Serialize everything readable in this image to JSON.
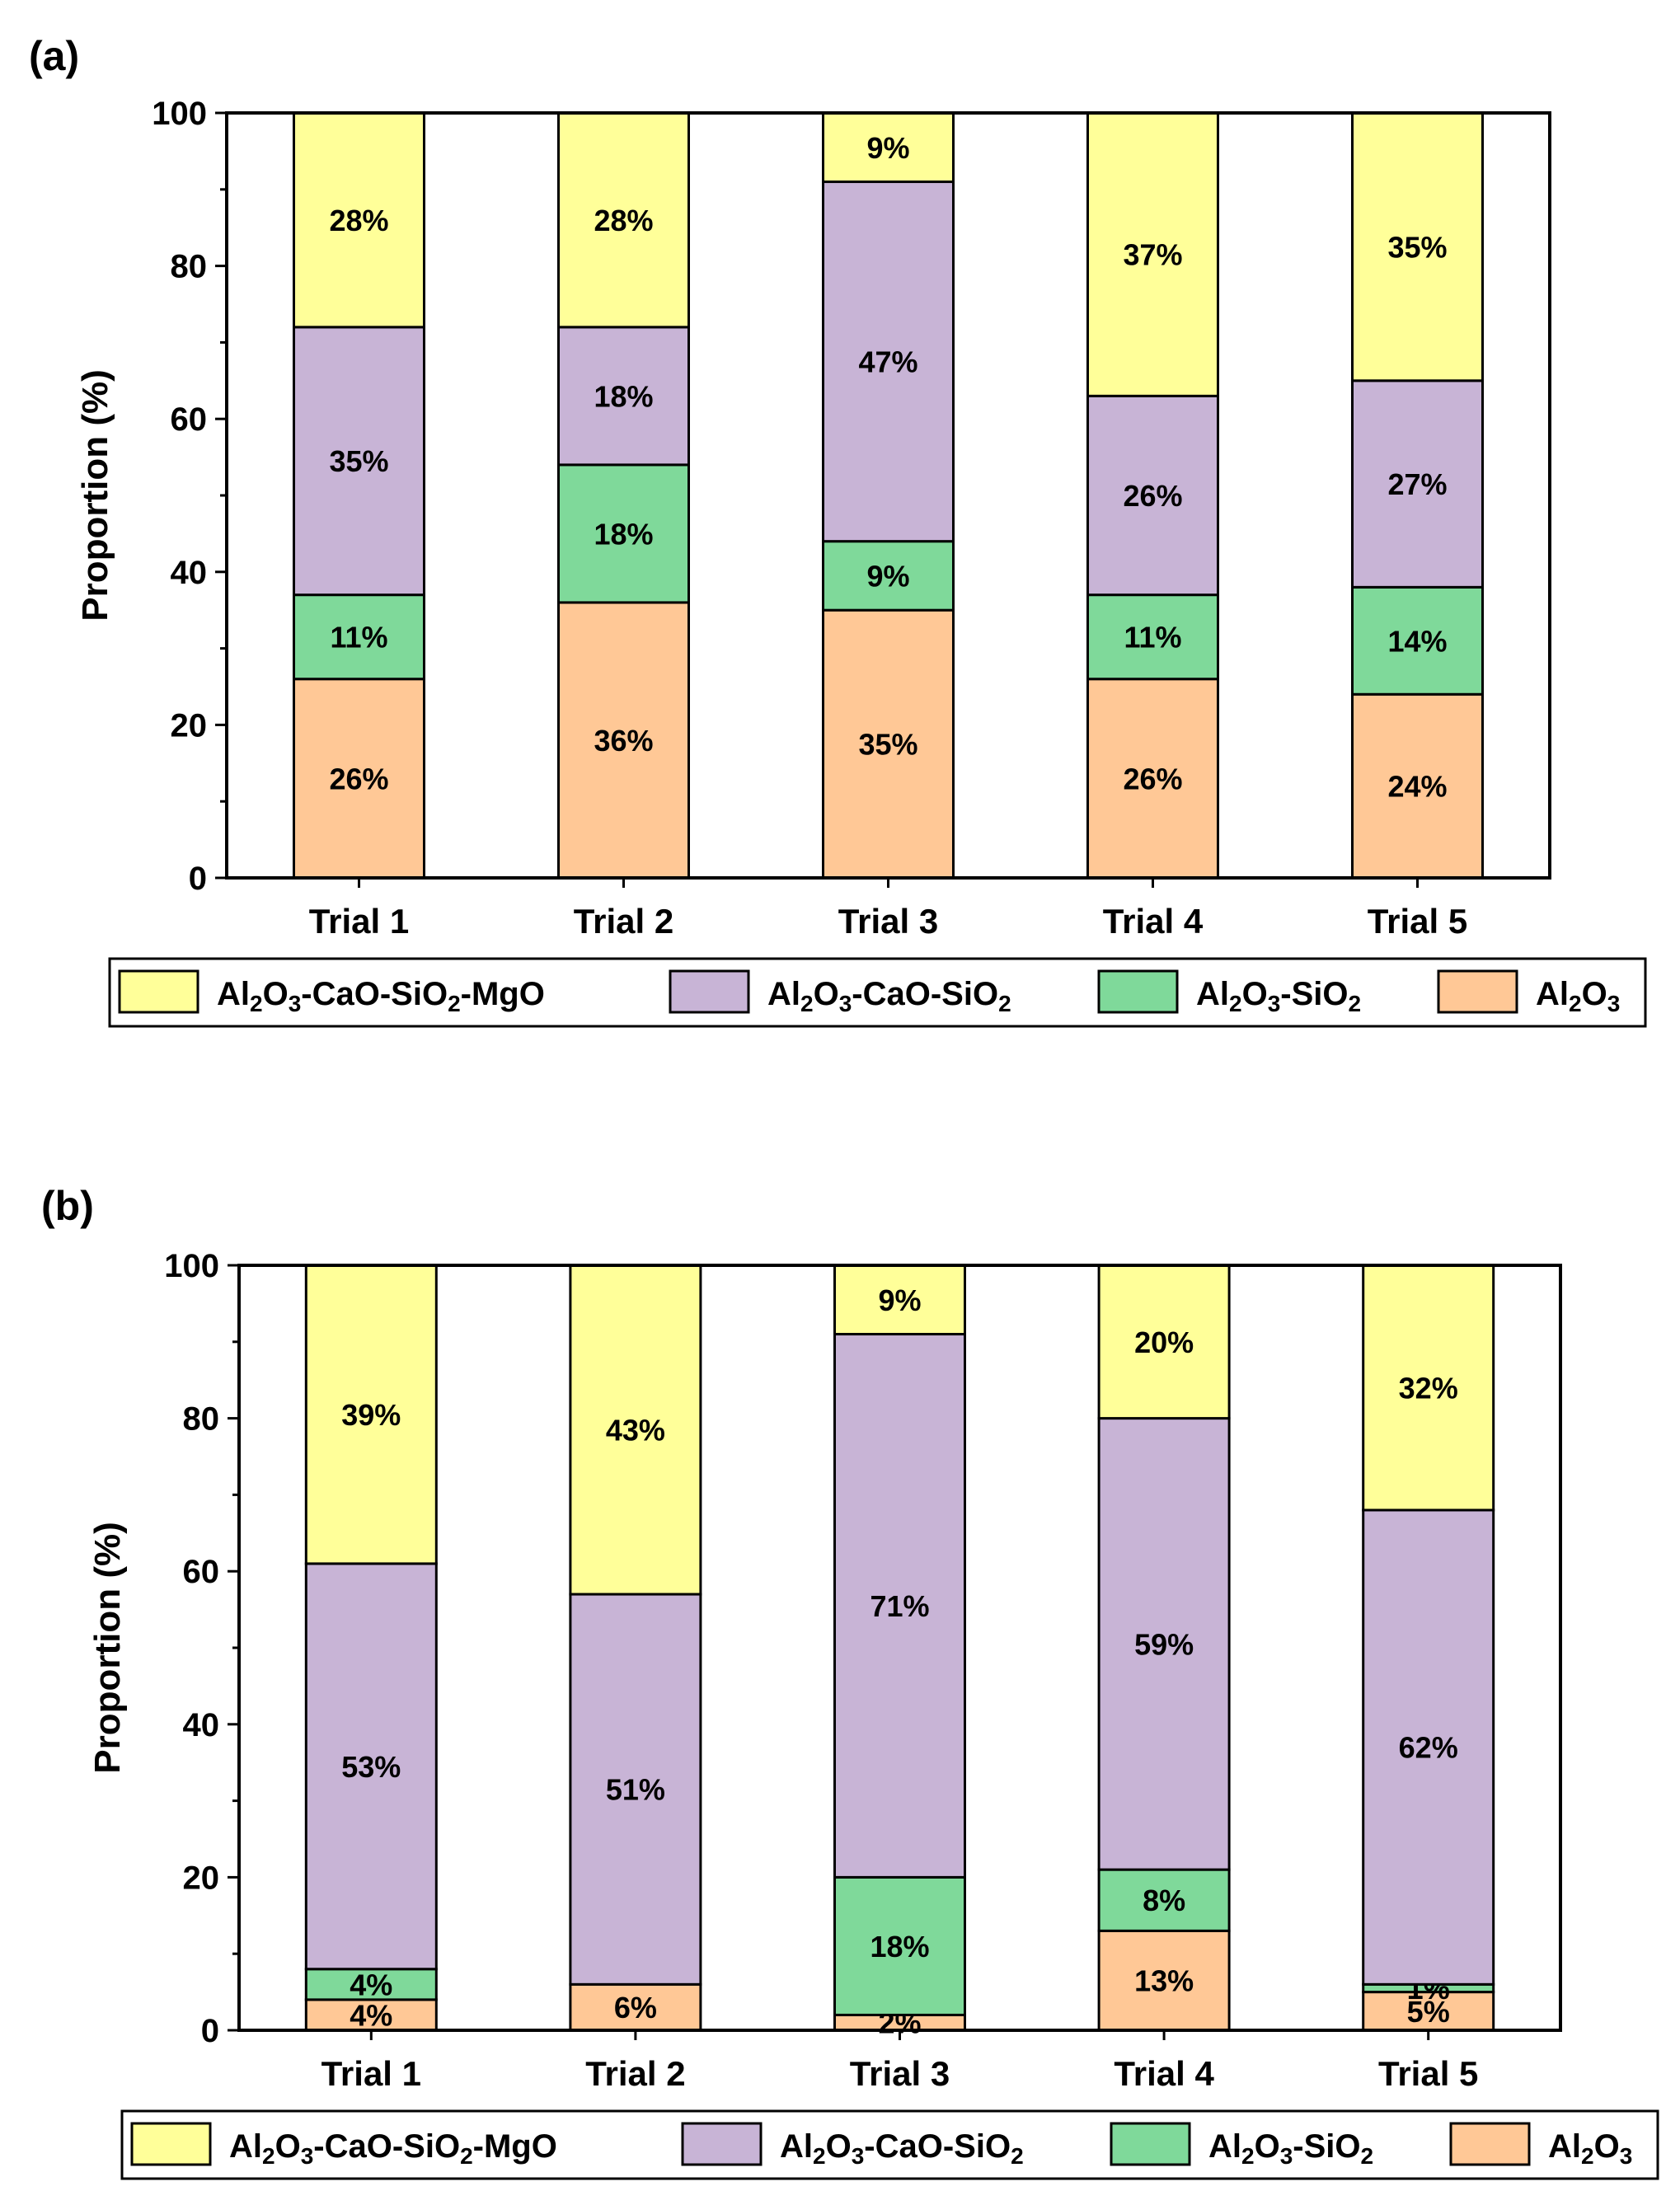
{
  "colors": {
    "Al2O3-CaO-SiO2-MgO": "#FFFF99",
    "Al2O3-CaO-SiO2": "#C8B4D6",
    "Al2O3-SiO2": "#7FD99A",
    "Al2O3": "#FFC896"
  },
  "legend": [
    {
      "key": "Al2O3-CaO-SiO2-MgO",
      "parts": [
        [
          "Al",
          ""
        ],
        [
          "2",
          "sub"
        ],
        [
          "O",
          ""
        ],
        [
          "3",
          "sub"
        ],
        [
          "-CaO-SiO",
          ""
        ],
        [
          "2",
          "sub"
        ],
        [
          "-MgO",
          ""
        ]
      ]
    },
    {
      "key": "Al2O3-CaO-SiO2",
      "parts": [
        [
          "Al",
          ""
        ],
        [
          "2",
          "sub"
        ],
        [
          "O",
          ""
        ],
        [
          "3",
          "sub"
        ],
        [
          "-CaO-SiO",
          ""
        ],
        [
          "2",
          "sub"
        ]
      ]
    },
    {
      "key": "Al2O3-SiO2",
      "parts": [
        [
          "Al",
          ""
        ],
        [
          "2",
          "sub"
        ],
        [
          "O",
          ""
        ],
        [
          "3",
          "sub"
        ],
        [
          "-SiO",
          ""
        ],
        [
          "2",
          "sub"
        ]
      ]
    },
    {
      "key": "Al2O3",
      "parts": [
        [
          "Al",
          ""
        ],
        [
          "2",
          "sub"
        ],
        [
          "O",
          ""
        ],
        [
          "3",
          "sub"
        ]
      ]
    }
  ],
  "chart_data": [
    {
      "panel": "(a)",
      "type": "bar",
      "stacked": true,
      "ylabel": "Proportion (%)",
      "ylim": [
        0,
        100
      ],
      "yticks": [
        0,
        20,
        40,
        60,
        80,
        100
      ],
      "categories": [
        "Trial 1",
        "Trial 2",
        "Trial 3",
        "Trial 4",
        "Trial 5"
      ],
      "series": [
        {
          "name": "Al2O3",
          "values": [
            26,
            36,
            35,
            26,
            24
          ],
          "labels": [
            "26%",
            "36%",
            "35%",
            "26%",
            "24%"
          ]
        },
        {
          "name": "Al2O3-SiO2",
          "values": [
            11,
            18,
            9,
            11,
            14
          ],
          "labels": [
            "11%",
            "18%",
            "9%",
            "11%",
            "14%"
          ]
        },
        {
          "name": "Al2O3-CaO-SiO2",
          "values": [
            35,
            18,
            47,
            26,
            27
          ],
          "labels": [
            "35%",
            "18%",
            "47%",
            "26%",
            "27%"
          ]
        },
        {
          "name": "Al2O3-CaO-SiO2-MgO",
          "values": [
            28,
            28,
            9,
            37,
            35
          ],
          "labels": [
            "28%",
            "28%",
            "9%",
            "37%",
            "35%"
          ]
        }
      ]
    },
    {
      "panel": "(b)",
      "type": "bar",
      "stacked": true,
      "ylabel": "Proportion (%)",
      "ylim": [
        0,
        100
      ],
      "yticks": [
        0,
        20,
        40,
        60,
        80,
        100
      ],
      "categories": [
        "Trial 1",
        "Trial 2",
        "Trial 3",
        "Trial 4",
        "Trial 5"
      ],
      "series": [
        {
          "name": "Al2O3",
          "values": [
            4,
            6,
            2,
            13,
            5
          ],
          "labels": [
            "4%",
            "6%",
            "2%",
            "13%",
            "5%"
          ]
        },
        {
          "name": "Al2O3-SiO2",
          "values": [
            4,
            0,
            18,
            8,
            1
          ],
          "labels": [
            "4%",
            "",
            "18%",
            "8%",
            "1%"
          ]
        },
        {
          "name": "Al2O3-CaO-SiO2",
          "values": [
            53,
            51,
            71,
            59,
            62
          ],
          "labels": [
            "53%",
            "51%",
            "71%",
            "59%",
            "62%"
          ]
        },
        {
          "name": "Al2O3-CaO-SiO2-MgO",
          "values": [
            39,
            43,
            9,
            20,
            32
          ],
          "labels": [
            "39%",
            "43%",
            "9%",
            "20%",
            "32%"
          ]
        }
      ]
    }
  ]
}
